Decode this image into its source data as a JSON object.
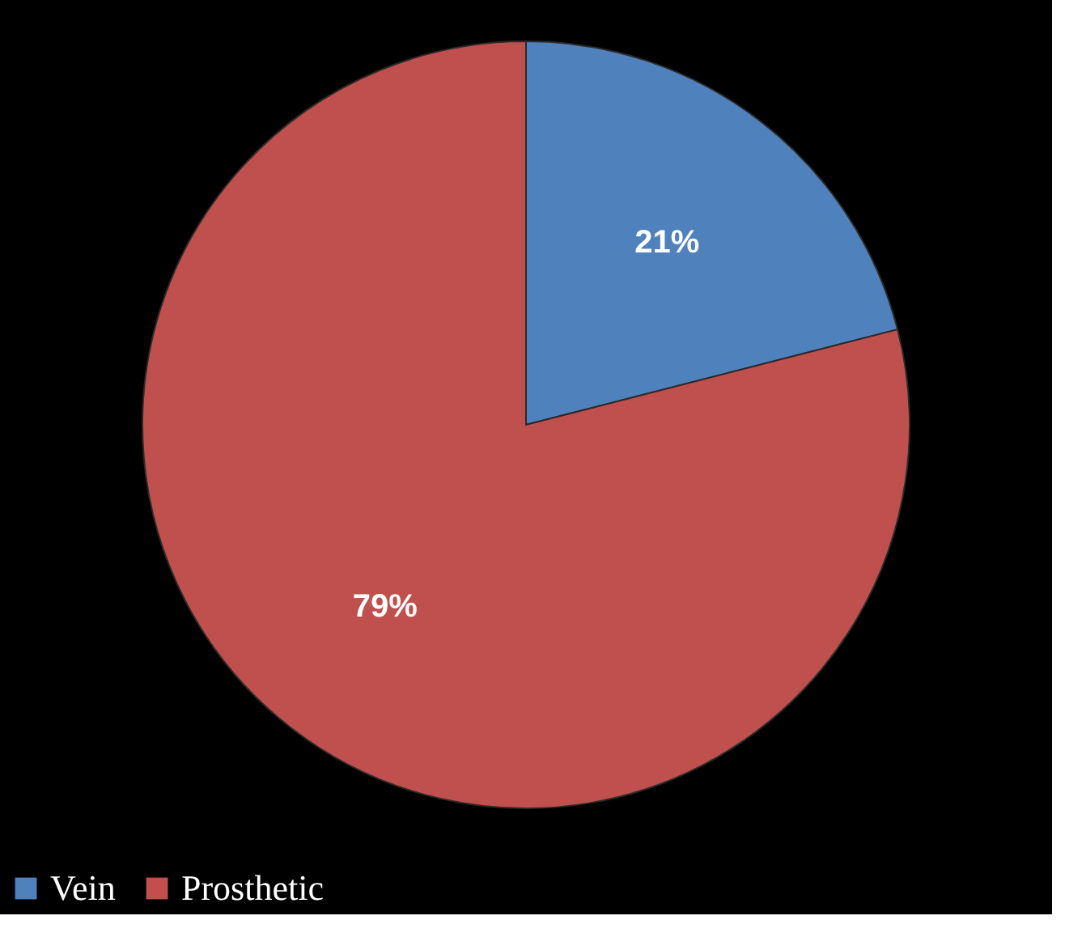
{
  "chart_data": {
    "type": "pie",
    "categories": [
      "Vein",
      "Prosthetic"
    ],
    "values": [
      21,
      79
    ],
    "colors": [
      "#4f81bd",
      "#c0504d"
    ],
    "value_labels": [
      "21%",
      "79%"
    ],
    "legend": "bottom"
  }
}
